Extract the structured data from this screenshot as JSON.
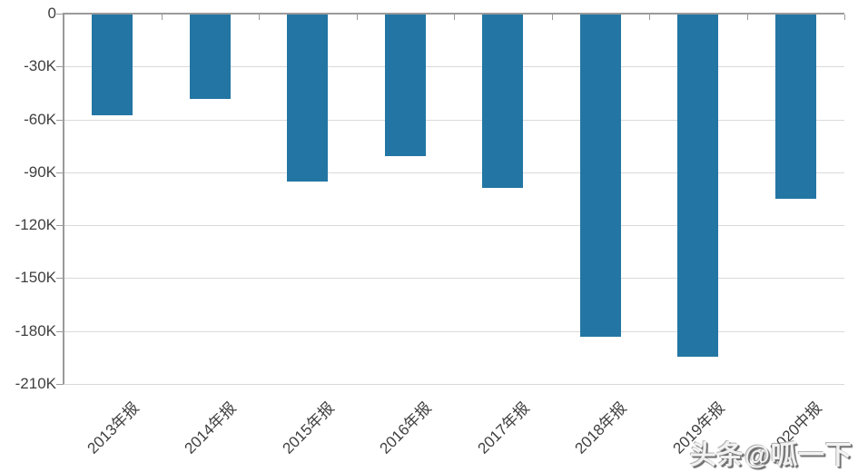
{
  "chart_data": {
    "type": "bar",
    "categories": [
      "2013年报",
      "2014年报",
      "2015年报",
      "2016年报",
      "2017年报",
      "2018年报",
      "2019年报",
      "2020中报"
    ],
    "values": [
      -57500,
      -48500,
      -95000,
      -81000,
      -99000,
      -183000,
      -194500,
      -105000
    ],
    "title": "",
    "xlabel": "",
    "ylabel": "",
    "ylim": [
      -210000,
      0
    ],
    "y_tick_labels": [
      "0",
      "-30K",
      "-60K",
      "-90K",
      "-120K",
      "-150K",
      "-180K",
      "-210K"
    ],
    "y_tick_values": [
      0,
      -30000,
      -60000,
      -90000,
      -120000,
      -150000,
      -180000,
      -210000
    ],
    "grid": true,
    "legend": "none",
    "x_label_rotation_deg": 45,
    "bar_color": "#2376a3"
  },
  "watermark": {
    "text": "头条@呱一下"
  },
  "colors": {
    "bar": "#2376a3",
    "gridline": "#d9d9d9",
    "axis": "#9a9a9a",
    "tick_label": "#404040",
    "background": "#ffffff"
  }
}
